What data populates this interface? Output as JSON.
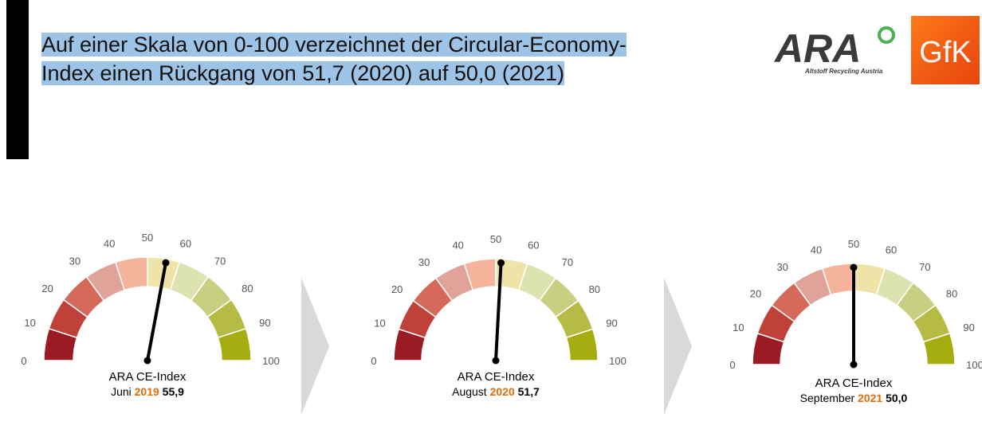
{
  "headline": {
    "line1": "Auf einer Skala von 0-100 verzeichnet der Circular-Economy-",
    "line2": "Index einen Rückgang von 51,7 (2020) auf 50,0 (2021)"
  },
  "logos": {
    "ara_text": "ARA",
    "ara_subtitle": "Altstoff Recycling Austria",
    "gfk_text": "GfK"
  },
  "colors": {
    "accent_year": "#e36c09",
    "segments": [
      "#9b1b24",
      "#c0403a",
      "#d56a5a",
      "#e0a39a",
      "#f4b39a",
      "#efe3a8",
      "#dde3b0",
      "#c9cf80",
      "#b5bb45",
      "#a5ad10"
    ],
    "arrow": "#d9d9d9"
  },
  "chart_data": [
    {
      "type": "gauge",
      "range": [
        0,
        100
      ],
      "ticks": [
        "0",
        "10",
        "20",
        "30",
        "40",
        "50",
        "60",
        "70",
        "80",
        "90",
        "100"
      ],
      "value": 55.9,
      "label": "ARA CE-Index",
      "period": "Juni",
      "year": "2019",
      "value_text": "55,9"
    },
    {
      "type": "gauge",
      "range": [
        0,
        100
      ],
      "ticks": [
        "0",
        "10",
        "20",
        "30",
        "40",
        "50",
        "60",
        "70",
        "80",
        "90",
        "100"
      ],
      "value": 51.7,
      "label": "ARA CE-Index",
      "period": "August",
      "year": "2020",
      "value_text": "51,7"
    },
    {
      "type": "gauge",
      "range": [
        0,
        100
      ],
      "ticks": [
        "0",
        "10",
        "20",
        "30",
        "40",
        "50",
        "60",
        "70",
        "80",
        "90",
        "100"
      ],
      "value": 50.0,
      "label": "ARA CE-Index",
      "period": "September",
      "year": "2021",
      "value_text": "50,0"
    }
  ]
}
